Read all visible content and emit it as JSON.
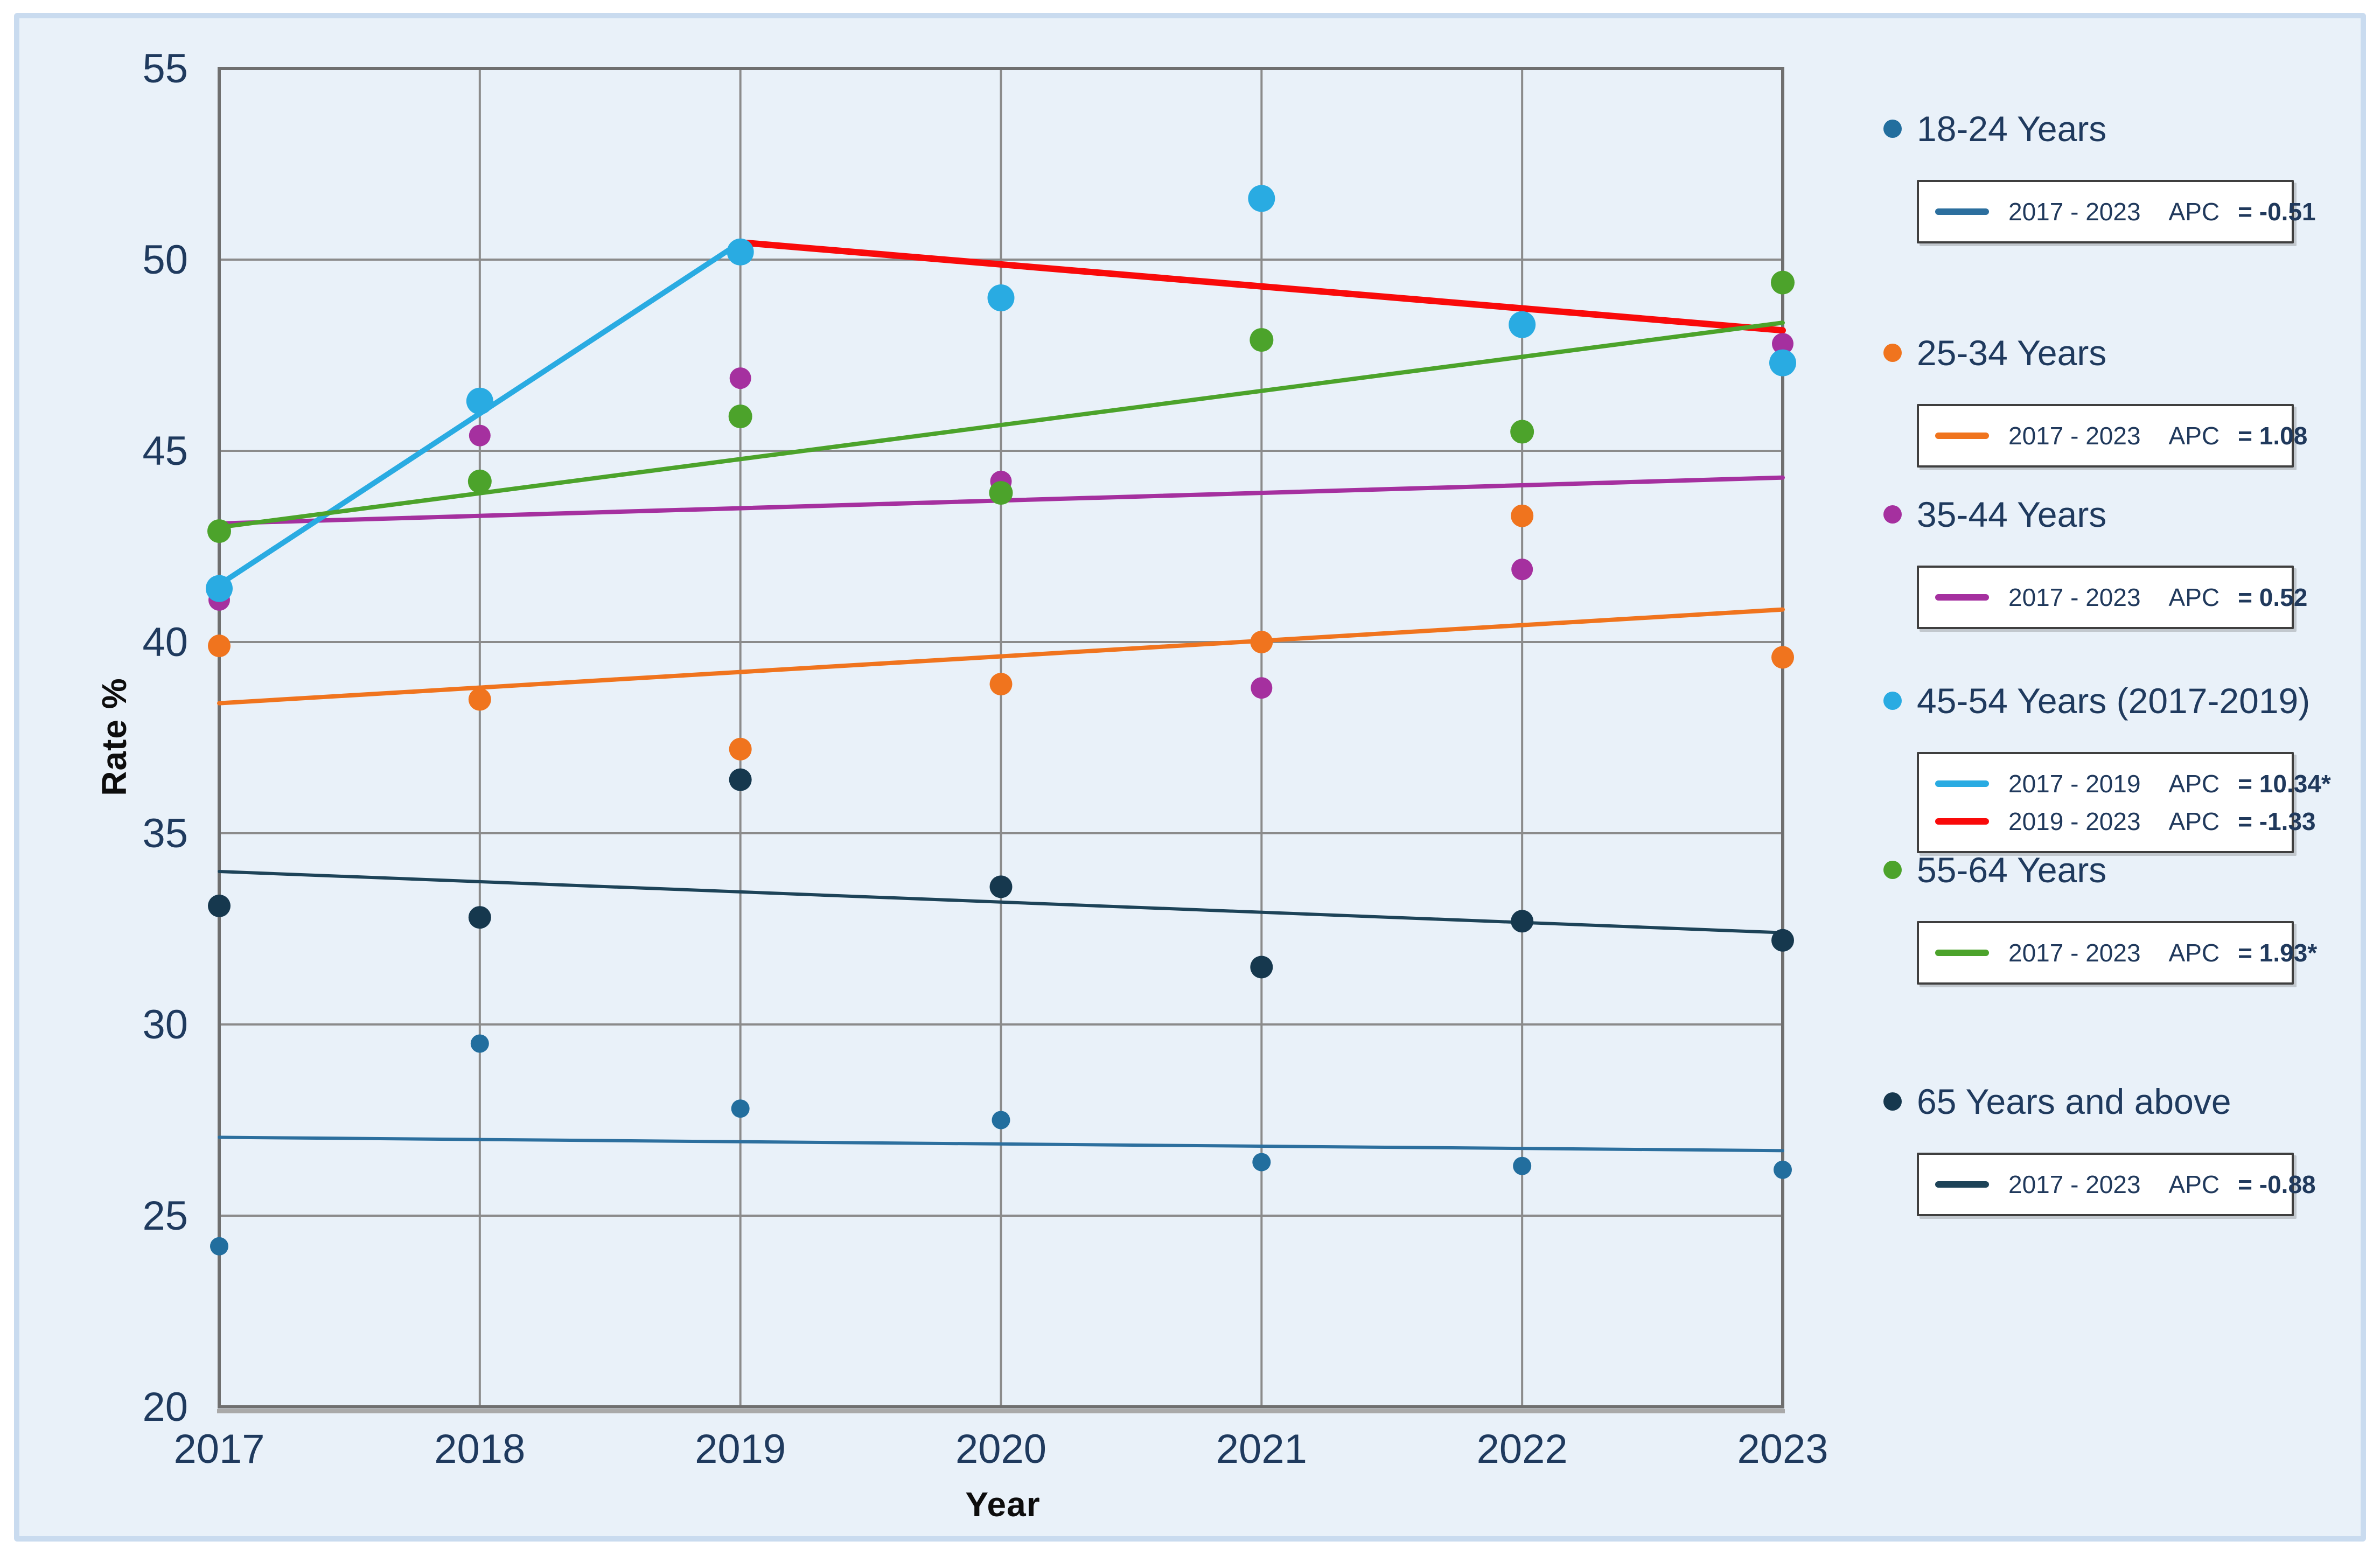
{
  "card": {
    "background": "#e9f1f9",
    "border_color": "#c9dbef"
  },
  "chart_data": {
    "type": "scatter",
    "title": "",
    "xlabel": "Year",
    "ylabel": "Rate %",
    "x": [
      2017,
      2018,
      2019,
      2020,
      2021,
      2022,
      2023
    ],
    "x_tick_labels": [
      "2017",
      "2018",
      "2019",
      "2020",
      "2021",
      "2022",
      "2023"
    ],
    "y_ticks": [
      20,
      25,
      30,
      35,
      40,
      45,
      50,
      55
    ],
    "ylim": [
      20,
      55
    ],
    "grid": "on",
    "legend_position": "right",
    "grid_color": "#8b8b8b",
    "border_color": "#6f6f6f",
    "tick_label_color": "#1f3a5e",
    "series": [
      {
        "name": "18-24 Years",
        "color": "#226e9e",
        "dot_radius": 17,
        "values": [
          24.2,
          29.5,
          27.8,
          27.5,
          26.4,
          26.3,
          26.2
        ],
        "trend_lines": [
          {
            "x1": 2017,
            "y1": 27.05,
            "x2": 2023,
            "y2": 26.7,
            "color": "#2c6f9e",
            "width": 6,
            "apc": "-0.51"
          }
        ]
      },
      {
        "name": "25-34 Years",
        "color": "#f0741e",
        "dot_radius": 21,
        "values": [
          39.9,
          38.5,
          37.2,
          38.9,
          40.0,
          43.3,
          39.6
        ],
        "trend_lines": [
          {
            "x1": 2017,
            "y1": 38.4,
            "x2": 2023,
            "y2": 40.85,
            "color": "#f0741e",
            "width": 8,
            "apc": "1.08"
          }
        ]
      },
      {
        "name": "35-44 Years",
        "color": "#a5309f",
        "dot_radius": 20,
        "values": [
          41.1,
          45.4,
          46.9,
          44.2,
          38.8,
          41.9,
          47.8
        ],
        "trend_lines": [
          {
            "x1": 2017,
            "y1": 43.1,
            "x2": 2023,
            "y2": 44.3,
            "color": "#a5309f",
            "width": 8,
            "apc": "0.52"
          }
        ]
      },
      {
        "name": "45-54 Years (2017-2019)",
        "color": "#29abe2",
        "dot_radius": 25,
        "values": [
          41.4,
          46.3,
          50.2,
          49.0,
          51.6,
          48.3,
          47.3
        ],
        "trend_lines": [
          {
            "x1": 2017,
            "y1": 41.5,
            "x2": 2019,
            "y2": 50.45,
            "color": "#29abe2",
            "width": 10,
            "apc": "10.34*"
          },
          {
            "x1": 2019,
            "y1": 50.45,
            "x2": 2023,
            "y2": 48.15,
            "color": "#f90a0a",
            "width": 12,
            "apc": "-1.33"
          }
        ]
      },
      {
        "name": "55-64 Years",
        "color": "#4ca32b",
        "dot_radius": 22,
        "values": [
          42.9,
          44.2,
          45.9,
          43.9,
          47.9,
          45.5,
          49.4
        ],
        "trend_lines": [
          {
            "x1": 2017,
            "y1": 43.0,
            "x2": 2023,
            "y2": 48.35,
            "color": "#4ca32b",
            "width": 8,
            "apc": "1.93*"
          }
        ]
      },
      {
        "name": "65 Years and above",
        "color": "#16384e",
        "dot_radius": 21,
        "values": [
          33.1,
          32.8,
          36.4,
          33.6,
          31.5,
          32.7,
          32.2
        ],
        "trend_lines": [
          {
            "x1": 2017,
            "y1": 34.0,
            "x2": 2023,
            "y2": 32.4,
            "color": "#1d4358",
            "width": 6,
            "apc": "-0.88"
          }
        ]
      }
    ]
  },
  "legend": {
    "entries": [
      {
        "label": "18-24 Years",
        "rows": [
          {
            "period": "2017 - 2023",
            "apc_label": "APC",
            "apc_value": "= -0.51",
            "color": "#2c6f9e"
          }
        ]
      },
      {
        "label": "25-34 Years",
        "rows": [
          {
            "period": "2017 - 2023",
            "apc_label": "APC",
            "apc_value": "= 1.08",
            "color": "#f0741e"
          }
        ]
      },
      {
        "label": "35-44 Years",
        "rows": [
          {
            "period": "2017 - 2023",
            "apc_label": "APC",
            "apc_value": "= 0.52",
            "color": "#a5309f"
          }
        ]
      },
      {
        "label": "45-54 Years (2017-2019)",
        "rows": [
          {
            "period": "2017 - 2019",
            "apc_label": "APC",
            "apc_value": "= 10.34*",
            "color": "#29abe2"
          },
          {
            "period": "2019 - 2023",
            "apc_label": "APC",
            "apc_value": "= -1.33",
            "color": "#f90a0a"
          }
        ]
      },
      {
        "label": "55-64 Years",
        "rows": [
          {
            "period": "2017 - 2023",
            "apc_label": "APC",
            "apc_value": "= 1.93*",
            "color": "#4ca32b"
          }
        ]
      },
      {
        "label": "65 Years and above",
        "rows": [
          {
            "period": "2017 - 2023",
            "apc_label": "APC",
            "apc_value": "= -0.88",
            "color": "#1d4358"
          }
        ]
      }
    ]
  }
}
